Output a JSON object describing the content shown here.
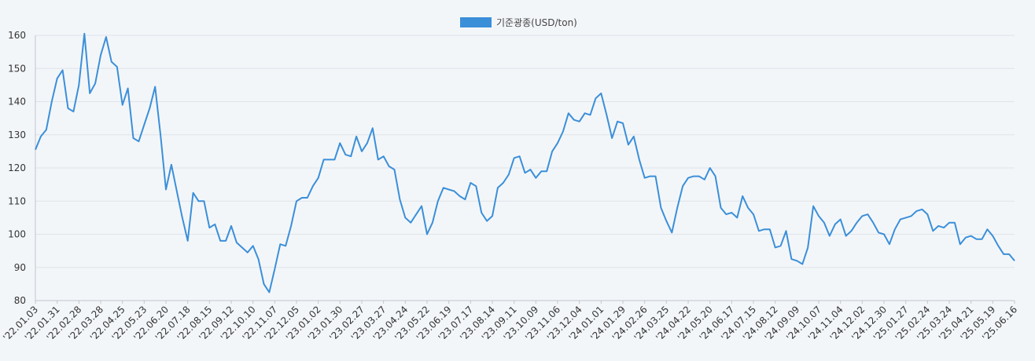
{
  "chart_data": {
    "type": "line",
    "legend": {
      "label": "기준광종(USD/ton)",
      "color": "#3b8fd9",
      "position": "top-center"
    },
    "grid": true,
    "ylim": [
      80,
      160
    ],
    "y_ticks": [
      "160",
      "150",
      "140",
      "130",
      "120",
      "110",
      "100",
      "90",
      "80"
    ],
    "x_tick_labels": [
      "'22.01.03",
      "'22.01.31",
      "'22.02.28",
      "'22.03.28",
      "'22.04.25",
      "'22.05.23",
      "'22.06.20",
      "'22.07.18",
      "'22.08.15",
      "'22.09.12",
      "'22.10.10",
      "'22.11.07",
      "'22.12.05",
      "'23.01.02",
      "'23.01.30",
      "'23.02.27",
      "'23.03.27",
      "'23.04.24",
      "'23.05.22",
      "'23.06.19",
      "'23.07.17",
      "'23.08.14",
      "'23.09.11",
      "'23.10.09",
      "'23.11.06",
      "'23.12.04",
      "'24.01.01",
      "'24.01.29",
      "'24.02.26",
      "'24.03.25",
      "'24.04.22",
      "'24.05.20",
      "'24.06.17",
      "'24.07.15",
      "'24.08.12",
      "'24.09.09",
      "'24.10.07",
      "'24.11.04",
      "'24.12.02",
      "'24.12.30",
      "'25.01.27",
      "'25.02.24",
      "'25.03.24",
      "'25.04.21",
      "'25.05.19",
      "'25.06.16"
    ],
    "series": [
      {
        "name": "기준광종(USD/ton)",
        "color": "#3b8fd9",
        "values": [
          125.5,
          129.5,
          131.5,
          140.0,
          147.0,
          149.5,
          138.0,
          137.0,
          145.0,
          160.5,
          142.5,
          145.5,
          154.0,
          159.5,
          152.0,
          150.5,
          139.0,
          144.0,
          129.0,
          128.0,
          133.0,
          138.0,
          144.5,
          130.0,
          113.5,
          121.0,
          113.0,
          105.0,
          98.0,
          112.5,
          110.0,
          110.0,
          102.0,
          103.0,
          98.0,
          98.0,
          102.5,
          97.5,
          96.0,
          94.5,
          96.5,
          92.5,
          85.0,
          82.5,
          89.5,
          97.0,
          96.5,
          102.5,
          110.0,
          111.0,
          111.0,
          114.5,
          117.0,
          122.5,
          122.5,
          122.5,
          127.5,
          124.0,
          123.5,
          129.5,
          125.0,
          127.5,
          132.0,
          122.5,
          123.5,
          120.5,
          119.5,
          110.5,
          105.0,
          103.5,
          106.0,
          108.5,
          100.0,
          103.5,
          110.0,
          114.0,
          113.5,
          113.0,
          111.5,
          110.5,
          115.5,
          114.5,
          106.5,
          104.0,
          105.5,
          114.0,
          115.5,
          118.0,
          123.0,
          123.5,
          118.5,
          119.5,
          117.0,
          119.0,
          119.0,
          125.0,
          127.5,
          131.0,
          136.5,
          134.5,
          134.0,
          136.5,
          136.0,
          141.0,
          142.5,
          136.0,
          129.0,
          134.0,
          133.5,
          127.0,
          129.5,
          122.5,
          117.0,
          117.5,
          117.5,
          108.0,
          104.0,
          100.5,
          108.0,
          114.5,
          117.0,
          117.5,
          117.5,
          116.5,
          120.0,
          117.5,
          108.0,
          106.0,
          106.5,
          105.0,
          111.5,
          108.0,
          106.0,
          101.0,
          101.5,
          101.5,
          96.0,
          96.5,
          101.0,
          92.5,
          92.0,
          91.0,
          96.0,
          108.5,
          105.5,
          103.5,
          99.5,
          103.0,
          104.5,
          99.5,
          101.0,
          103.5,
          105.5,
          106.0,
          103.5,
          100.5,
          100.0,
          97.0,
          101.5,
          104.5,
          105.0,
          105.5,
          107.0,
          107.5,
          106.0,
          101.0,
          102.5,
          102.0,
          103.5,
          103.5,
          97.0,
          99.0,
          99.5,
          98.5,
          98.5,
          101.5,
          99.5,
          96.5,
          94.0,
          94.0,
          92.0
        ]
      }
    ]
  }
}
